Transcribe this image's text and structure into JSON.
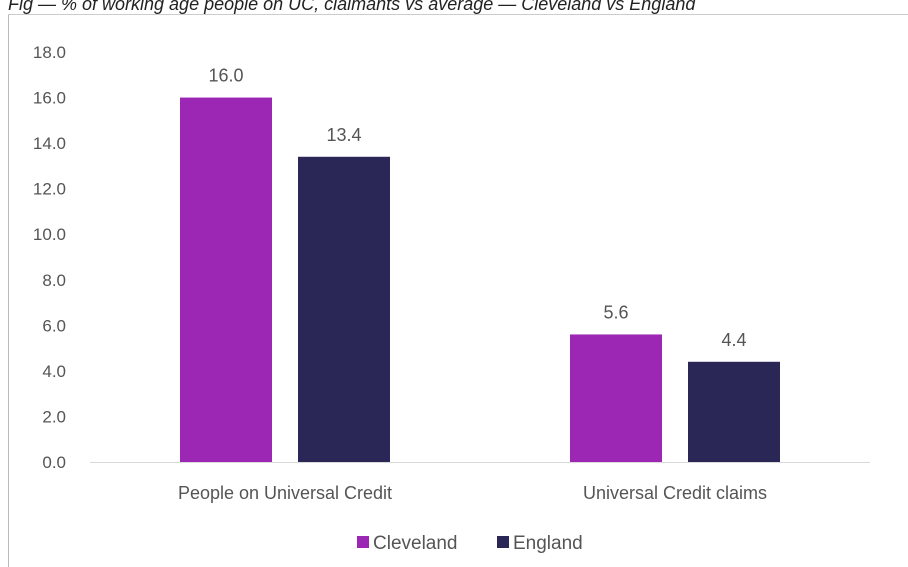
{
  "caption": "Fig         — % of working age people on UC, claimants vs average — Cleveland vs England",
  "chart_data": {
    "type": "bar",
    "categories": [
      "People on Universal Credit",
      "Universal Credit claims"
    ],
    "series": [
      {
        "name": "Cleveland",
        "values": [
          16.0,
          5.6
        ],
        "value_labels": [
          "16.0",
          "5.6"
        ],
        "color": "#9b27b4"
      },
      {
        "name": "England",
        "values": [
          13.4,
          4.4
        ],
        "value_labels": [
          "13.4",
          "4.4"
        ],
        "color": "#2a2757"
      }
    ],
    "title": "",
    "xlabel": "",
    "ylabel": "",
    "ylim": [
      0,
      18
    ],
    "yticks": [
      "0.0",
      "2.0",
      "4.0",
      "6.0",
      "8.0",
      "10.0",
      "12.0",
      "14.0",
      "16.0",
      "18.0"
    ],
    "grid": false,
    "legend": "bottom-center"
  }
}
